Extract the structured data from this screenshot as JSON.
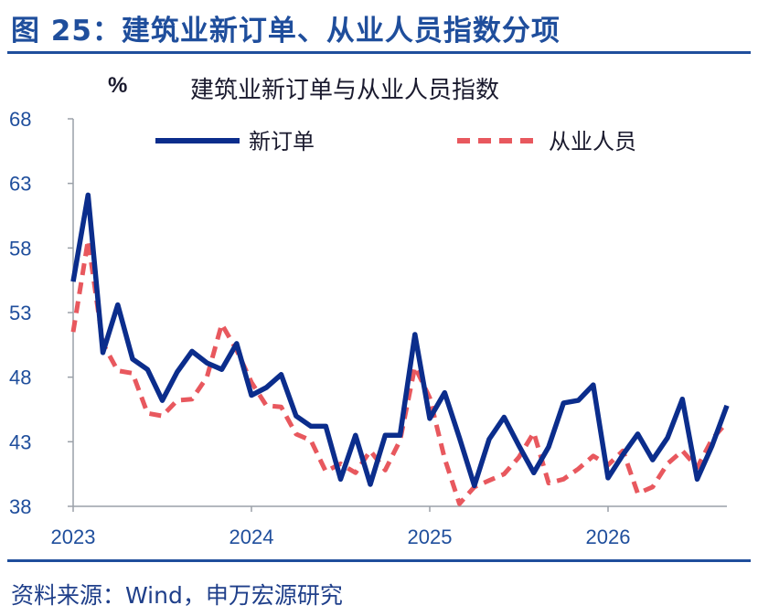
{
  "figure_title": "图 25：建筑业新订单、从业人员指数分项",
  "source": "资料来源：Wind，申万宏源研究",
  "colors": {
    "accent": "#1f4e9c",
    "series_new_orders": "#0b2d8c",
    "series_employment": "#e8585e"
  },
  "chart_data": {
    "type": "line",
    "title": "建筑业新订单与从业人员指数",
    "ylabel": "%",
    "xlabel": "",
    "ylim": [
      38,
      68
    ],
    "yticks": [
      "68",
      "63",
      "58",
      "53",
      "48",
      "43",
      "38"
    ],
    "xticks": [
      "2023",
      "2024",
      "2025",
      "2026"
    ],
    "xlim": [
      "2023-01",
      "2026-09"
    ],
    "legend_position": "top",
    "grid": false,
    "x": [
      "2023-01",
      "2023-02",
      "2023-03",
      "2023-04",
      "2023-05",
      "2023-06",
      "2023-07",
      "2023-08",
      "2023-09",
      "2023-10",
      "2023-11",
      "2023-12",
      "2024-01",
      "2024-02",
      "2024-03",
      "2024-04",
      "2024-05",
      "2024-06",
      "2024-07",
      "2024-08",
      "2024-09",
      "2024-10",
      "2024-11",
      "2024-12",
      "2025-01",
      "2025-02",
      "2025-03",
      "2025-04",
      "2025-05",
      "2025-06",
      "2025-07",
      "2025-08",
      "2025-09",
      "2025-10",
      "2025-11",
      "2025-12",
      "2026-01",
      "2026-02",
      "2026-03",
      "2026-04",
      "2026-05",
      "2026-06",
      "2026-07",
      "2026-08",
      "2026-09"
    ],
    "series": [
      {
        "name": "新订单",
        "style": "solid",
        "values": [
          55.4,
          62.1,
          49.9,
          53.6,
          49.4,
          48.6,
          46.2,
          48.4,
          50.0,
          49.1,
          48.6,
          50.6,
          46.6,
          47.2,
          48.2,
          45.0,
          44.2,
          44.2,
          40.1,
          43.5,
          39.7,
          43.5,
          43.5,
          51.3,
          44.8,
          46.8,
          43.3,
          39.6,
          43.2,
          44.9,
          42.7,
          40.6,
          42.6,
          46.0,
          46.2,
          47.4,
          40.2,
          42.0,
          43.6,
          41.6,
          43.3,
          46.3,
          40.1,
          42.7,
          45.8
        ]
      },
      {
        "name": "从业人员",
        "style": "dashed",
        "values": [
          51.5,
          58.6,
          50.6,
          48.5,
          48.3,
          45.2,
          45.0,
          46.2,
          46.3,
          48.0,
          52.1,
          50.1,
          47.6,
          45.8,
          45.7,
          43.6,
          43.1,
          40.7,
          41.3,
          40.6,
          42.3,
          40.8,
          43.1,
          48.8,
          46.4,
          41.7,
          38.2,
          39.5,
          40.0,
          40.5,
          41.8,
          43.7,
          39.8,
          40.1,
          40.9,
          41.9,
          41.2,
          42.3,
          39.0,
          39.5,
          41.3,
          42.3,
          41.0,
          43.2,
          44.5
        ]
      }
    ]
  }
}
